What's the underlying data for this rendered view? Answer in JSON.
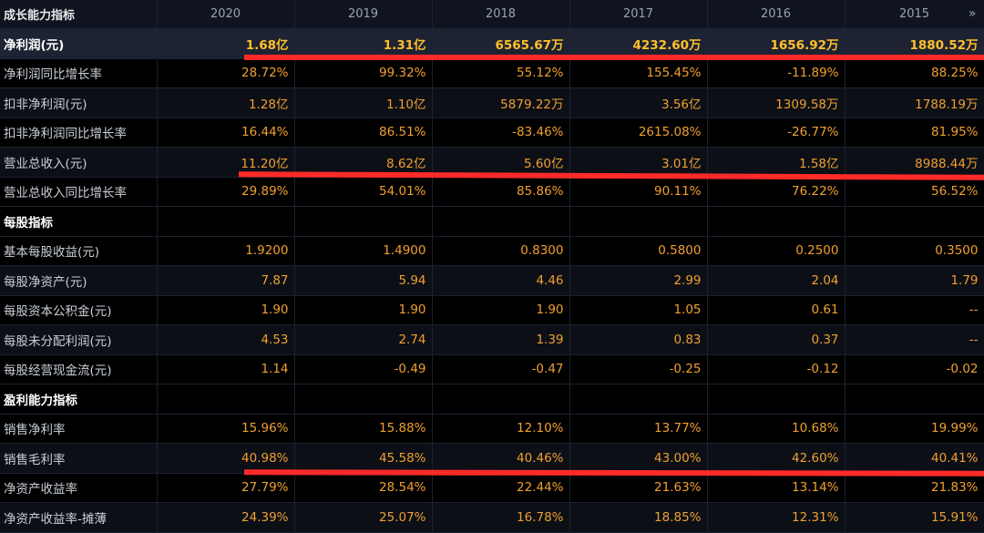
{
  "header": {
    "title": "成长能力指标",
    "years": [
      "2020",
      "2019",
      "2018",
      "2017",
      "2016",
      "2015"
    ],
    "more_icon": "double-chevron-right-icon"
  },
  "rows": [
    {
      "kind": "highlight",
      "label": "净利润(元)",
      "values": [
        "1.68亿",
        "1.31亿",
        "6565.67万",
        "4232.60万",
        "1656.92万",
        "1880.52万"
      ]
    },
    {
      "kind": "data",
      "label": "净利润同比增长率",
      "values": [
        "28.72%",
        "99.32%",
        "55.12%",
        "155.45%",
        "-11.89%",
        "88.25%"
      ]
    },
    {
      "kind": "data",
      "label": "扣非净利润(元)",
      "values": [
        "1.28亿",
        "1.10亿",
        "5879.22万",
        "3.56亿",
        "1309.58万",
        "1788.19万"
      ]
    },
    {
      "kind": "data",
      "label": "扣非净利润同比增长率",
      "values": [
        "16.44%",
        "86.51%",
        "-83.46%",
        "2615.08%",
        "-26.77%",
        "81.95%"
      ]
    },
    {
      "kind": "data",
      "label": "营业总收入(元)",
      "values": [
        "11.20亿",
        "8.62亿",
        "5.60亿",
        "3.01亿",
        "1.58亿",
        "8988.44万"
      ]
    },
    {
      "kind": "data",
      "label": "营业总收入同比增长率",
      "values": [
        "29.89%",
        "54.01%",
        "85.86%",
        "90.11%",
        "76.22%",
        "56.52%"
      ]
    },
    {
      "kind": "section",
      "label": "每股指标",
      "values": [
        "",
        "",
        "",
        "",
        "",
        ""
      ]
    },
    {
      "kind": "data",
      "label": "基本每股收益(元)",
      "values": [
        "1.9200",
        "1.4900",
        "0.8300",
        "0.5800",
        "0.2500",
        "0.3500"
      ]
    },
    {
      "kind": "data",
      "label": "每股净资产(元)",
      "values": [
        "7.87",
        "5.94",
        "4.46",
        "2.99",
        "2.04",
        "1.79"
      ]
    },
    {
      "kind": "data",
      "label": "每股资本公积金(元)",
      "values": [
        "1.90",
        "1.90",
        "1.90",
        "1.05",
        "0.61",
        "--"
      ]
    },
    {
      "kind": "data",
      "label": "每股未分配利润(元)",
      "values": [
        "4.53",
        "2.74",
        "1.39",
        "0.83",
        "0.37",
        "--"
      ]
    },
    {
      "kind": "data",
      "label": "每股经营现金流(元)",
      "values": [
        "1.14",
        "-0.49",
        "-0.47",
        "-0.25",
        "-0.12",
        "-0.02"
      ]
    },
    {
      "kind": "section",
      "label": "盈利能力指标",
      "values": [
        "",
        "",
        "",
        "",
        "",
        ""
      ]
    },
    {
      "kind": "data",
      "label": "销售净利率",
      "values": [
        "15.96%",
        "15.88%",
        "12.10%",
        "13.77%",
        "10.68%",
        "19.99%"
      ]
    },
    {
      "kind": "data",
      "label": "销售毛利率",
      "values": [
        "40.98%",
        "45.58%",
        "40.46%",
        "43.00%",
        "42.60%",
        "40.41%"
      ]
    },
    {
      "kind": "data",
      "label": "净资产收益率",
      "values": [
        "27.79%",
        "28.54%",
        "22.44%",
        "21.63%",
        "13.14%",
        "21.83%"
      ]
    },
    {
      "kind": "data",
      "label": "净资产收益率-摊薄",
      "values": [
        "24.39%",
        "25.07%",
        "16.78%",
        "18.85%",
        "12.31%",
        "15.91%"
      ]
    }
  ],
  "annotation_color": "#ff2a2a"
}
